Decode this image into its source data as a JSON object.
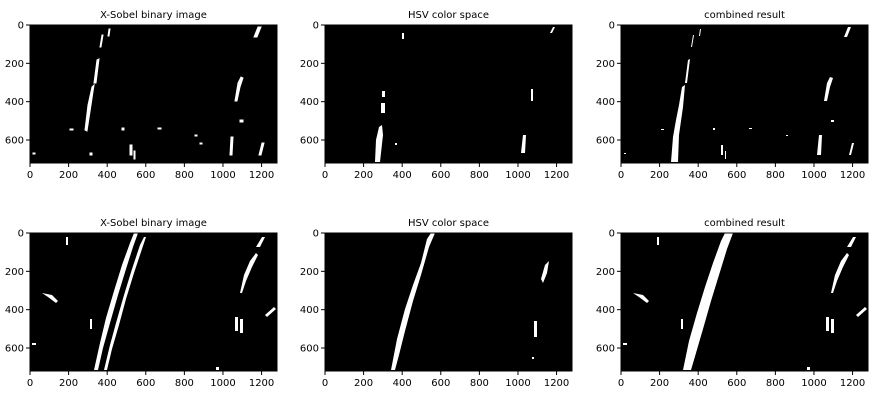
{
  "figure": {
    "background": "#ffffff",
    "image_background": "#000000",
    "foreground": "#ffffff",
    "x_ticks": [
      "0",
      "200",
      "400",
      "600",
      "800",
      "1000",
      "1200"
    ],
    "y_ticks": [
      "0",
      "200",
      "400",
      "600"
    ],
    "x_tick_values": [
      0,
      200,
      400,
      600,
      800,
      1000,
      1200
    ],
    "y_tick_values": [
      0,
      200,
      400,
      600
    ],
    "x_max": 1280,
    "y_max": 720
  },
  "panels": [
    {
      "title": "X-Sobel binary image",
      "row": 1,
      "col": 1
    },
    {
      "title": "HSV color space",
      "row": 1,
      "col": 2
    },
    {
      "title": "combined result",
      "row": 1,
      "col": 3
    },
    {
      "title": "X-Sobel binary image",
      "row": 2,
      "col": 1
    },
    {
      "title": "HSV color space",
      "row": 2,
      "col": 2
    },
    {
      "title": "combined result",
      "row": 2,
      "col": 3
    }
  ]
}
